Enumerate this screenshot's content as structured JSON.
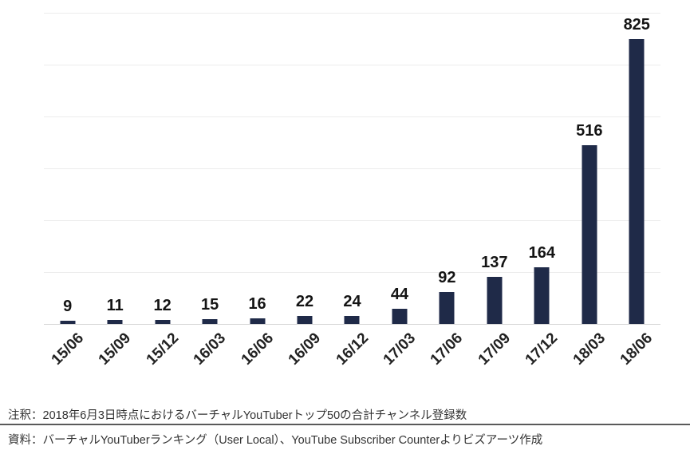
{
  "chart_data": {
    "type": "bar",
    "title": "",
    "xlabel": "",
    "ylabel": "",
    "categories": [
      "15/06",
      "15/09",
      "15/12",
      "16/03",
      "16/06",
      "16/09",
      "16/12",
      "17/03",
      "17/06",
      "17/09",
      "17/12",
      "18/03",
      "18/06"
    ],
    "values": [
      9,
      11,
      12,
      15,
      16,
      22,
      24,
      44,
      92,
      137,
      164,
      516,
      825
    ],
    "ylim": [
      0,
      900
    ],
    "gridline_step": 150,
    "grid": true,
    "legend_position": "none",
    "bar_color": "#1f2a48",
    "data_labels_shown": true,
    "x_tick_rotation_deg": 45
  },
  "footer": {
    "note": "注釈：2018年6月3日時点におけるバーチャルYouTuberトップ50の合計チャンネル登録数",
    "source": "資料：バーチャルYouTuberランキング（User Local）、YouTube Subscriber Counterよりビズアーツ作成"
  }
}
